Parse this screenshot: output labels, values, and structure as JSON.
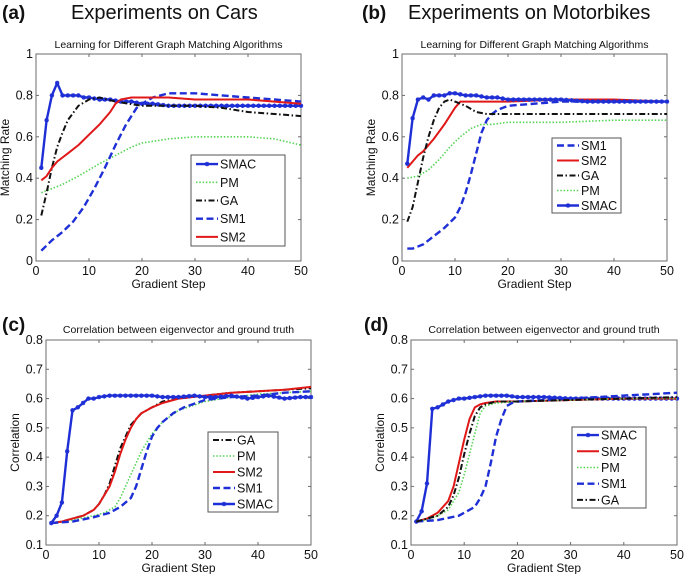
{
  "figure": {
    "panels": [
      {
        "label": "(a)",
        "heading": "Experiments on Cars"
      },
      {
        "label": "(b)",
        "heading": "Experiments on Motorbikes"
      },
      {
        "label": "(c)",
        "heading": ""
      },
      {
        "label": "(d)",
        "heading": ""
      }
    ]
  },
  "styles": {
    "SMAC": {
      "color": "#1f2fd6",
      "dash": "solid",
      "marker": "star"
    },
    "PM": {
      "color": "#55d455",
      "dash": "dotted",
      "marker": "none"
    },
    "GA": {
      "color": "#111111",
      "dash": "dashdot",
      "marker": "none"
    },
    "SM1": {
      "color": "#1f2fd6",
      "dash": "dashed",
      "marker": "none"
    },
    "SM2": {
      "color": "#e01818",
      "dash": "solid",
      "marker": "none"
    }
  },
  "chart_data": [
    {
      "id": "a",
      "type": "line",
      "title": "Learning for Different Graph Matching Algorithms",
      "xlabel": "Gradient Step",
      "ylabel": "Matching Rate",
      "xlim": [
        0,
        50
      ],
      "ylim": [
        0,
        1
      ],
      "xticks": [
        0,
        10,
        20,
        30,
        40,
        50
      ],
      "yticks": [
        0,
        0.2,
        0.4,
        0.6,
        0.8,
        1
      ],
      "ytick_labels": [
        "0",
        "0.2",
        "0.4",
        "0.6",
        "0.8",
        "1"
      ],
      "legend": [
        "SMAC",
        "PM",
        "GA",
        "SM1",
        "SM2"
      ],
      "legend_position": "center-right",
      "series": [
        {
          "name": "SMAC",
          "x": [
            1,
            2,
            3,
            4,
            5,
            6,
            7,
            8,
            9,
            10,
            12,
            14,
            16,
            18,
            20,
            22,
            25,
            30,
            35,
            40,
            45,
            50
          ],
          "y": [
            0.45,
            0.68,
            0.8,
            0.86,
            0.8,
            0.8,
            0.8,
            0.8,
            0.79,
            0.79,
            0.78,
            0.78,
            0.77,
            0.77,
            0.76,
            0.76,
            0.75,
            0.75,
            0.75,
            0.75,
            0.75,
            0.75
          ]
        },
        {
          "name": "PM",
          "x": [
            1,
            3,
            5,
            8,
            10,
            12,
            15,
            18,
            20,
            25,
            30,
            35,
            40,
            45,
            50
          ],
          "y": [
            0.33,
            0.35,
            0.37,
            0.41,
            0.44,
            0.47,
            0.51,
            0.55,
            0.57,
            0.59,
            0.6,
            0.6,
            0.6,
            0.59,
            0.56
          ]
        },
        {
          "name": "GA",
          "x": [
            1,
            2,
            3,
            4,
            5,
            6,
            8,
            10,
            12,
            15,
            20,
            25,
            30,
            35,
            40,
            45,
            50
          ],
          "y": [
            0.22,
            0.33,
            0.45,
            0.55,
            0.62,
            0.68,
            0.75,
            0.78,
            0.79,
            0.77,
            0.75,
            0.75,
            0.75,
            0.74,
            0.72,
            0.71,
            0.7
          ]
        },
        {
          "name": "SM1",
          "x": [
            1,
            3,
            5,
            7,
            9,
            11,
            13,
            15,
            17,
            19,
            20,
            22,
            25,
            30,
            35,
            40,
            45,
            50
          ],
          "y": [
            0.05,
            0.1,
            0.14,
            0.19,
            0.26,
            0.35,
            0.45,
            0.56,
            0.66,
            0.74,
            0.76,
            0.79,
            0.81,
            0.81,
            0.8,
            0.79,
            0.78,
            0.77
          ]
        },
        {
          "name": "SM2",
          "x": [
            1,
            2,
            3,
            4,
            5,
            6,
            8,
            10,
            12,
            14,
            15,
            16,
            18,
            20,
            25,
            30,
            35,
            40,
            45,
            50
          ],
          "y": [
            0.39,
            0.41,
            0.45,
            0.48,
            0.5,
            0.52,
            0.56,
            0.61,
            0.66,
            0.72,
            0.76,
            0.78,
            0.79,
            0.79,
            0.79,
            0.78,
            0.78,
            0.78,
            0.77,
            0.76
          ]
        }
      ]
    },
    {
      "id": "b",
      "type": "line",
      "title": "Learning for Different Graph Matching Algorithms",
      "xlabel": "Gradient Step",
      "ylabel": "Matching Rate",
      "xlim": [
        0,
        50
      ],
      "ylim": [
        0,
        1
      ],
      "xticks": [
        0,
        10,
        20,
        30,
        40,
        50
      ],
      "yticks": [
        0,
        0.2,
        0.4,
        0.6,
        0.8,
        1
      ],
      "ytick_labels": [
        "0",
        "0.2",
        "0.4",
        "0.6",
        "0.8",
        "1"
      ],
      "legend": [
        "SM1",
        "SM2",
        "GA",
        "PM",
        "SMAC"
      ],
      "legend_position": "center-right",
      "series": [
        {
          "name": "SM1",
          "x": [
            1,
            2,
            4,
            6,
            8,
            10,
            11,
            12,
            13,
            14,
            15,
            16,
            17,
            18,
            20,
            25,
            30,
            40,
            50
          ],
          "y": [
            0.06,
            0.06,
            0.08,
            0.12,
            0.16,
            0.21,
            0.26,
            0.33,
            0.42,
            0.52,
            0.62,
            0.68,
            0.71,
            0.73,
            0.75,
            0.76,
            0.77,
            0.77,
            0.77
          ]
        },
        {
          "name": "SM2",
          "x": [
            1,
            2,
            3,
            4,
            5,
            6,
            8,
            10,
            11,
            12,
            15,
            20,
            30,
            40,
            50
          ],
          "y": [
            0.45,
            0.48,
            0.51,
            0.53,
            0.56,
            0.59,
            0.66,
            0.74,
            0.77,
            0.77,
            0.77,
            0.77,
            0.78,
            0.78,
            0.77
          ]
        },
        {
          "name": "GA",
          "x": [
            1,
            2,
            3,
            4,
            5,
            6,
            7,
            8,
            9,
            10,
            12,
            14,
            16,
            18,
            20,
            30,
            40,
            50
          ],
          "y": [
            0.19,
            0.26,
            0.38,
            0.5,
            0.6,
            0.68,
            0.74,
            0.77,
            0.78,
            0.77,
            0.75,
            0.72,
            0.71,
            0.71,
            0.71,
            0.71,
            0.71,
            0.71
          ]
        },
        {
          "name": "PM",
          "x": [
            1,
            3,
            5,
            7,
            9,
            11,
            13,
            15,
            17,
            20,
            30,
            40,
            50
          ],
          "y": [
            0.4,
            0.41,
            0.44,
            0.49,
            0.55,
            0.6,
            0.64,
            0.66,
            0.66,
            0.67,
            0.67,
            0.68,
            0.68
          ]
        },
        {
          "name": "SMAC",
          "x": [
            1,
            2,
            3,
            4,
            5,
            6,
            7,
            8,
            9,
            10,
            12,
            14,
            16,
            18,
            20,
            25,
            30,
            35,
            40,
            45,
            50
          ],
          "y": [
            0.47,
            0.69,
            0.78,
            0.79,
            0.78,
            0.8,
            0.8,
            0.8,
            0.81,
            0.81,
            0.8,
            0.8,
            0.79,
            0.79,
            0.78,
            0.78,
            0.78,
            0.77,
            0.77,
            0.77,
            0.77
          ]
        }
      ]
    },
    {
      "id": "c",
      "type": "line",
      "title": "Correlation between eigenvector and ground truth",
      "xlabel": "Gradient Step",
      "ylabel": "Correlation",
      "xlim": [
        0,
        50
      ],
      "ylim": [
        0.1,
        0.8
      ],
      "xticks": [
        0,
        10,
        20,
        30,
        40,
        50
      ],
      "yticks": [
        0.1,
        0.2,
        0.3,
        0.4,
        0.5,
        0.6,
        0.7,
        0.8
      ],
      "ytick_labels": [
        "0.1",
        "0.2",
        "0.3",
        "0.4",
        "0.5",
        "0.6",
        "0.7",
        "0.8"
      ],
      "legend": [
        "GA",
        "PM",
        "SM2",
        "SM1",
        "SMAC"
      ],
      "legend_position": "lower-right",
      "series": [
        {
          "name": "GA",
          "x": [
            1,
            3,
            5,
            7,
            9,
            10,
            11,
            12,
            13,
            14,
            15,
            16,
            17,
            18,
            20,
            22,
            25,
            30,
            35,
            40,
            45,
            50
          ],
          "y": [
            0.175,
            0.18,
            0.19,
            0.2,
            0.22,
            0.24,
            0.27,
            0.31,
            0.37,
            0.43,
            0.47,
            0.51,
            0.53,
            0.55,
            0.57,
            0.59,
            0.6,
            0.61,
            0.62,
            0.625,
            0.63,
            0.635
          ]
        },
        {
          "name": "PM",
          "x": [
            1,
            5,
            9,
            11,
            13,
            14,
            15,
            16,
            17,
            18,
            19,
            20,
            22,
            25,
            30,
            35,
            40,
            45,
            50
          ],
          "y": [
            0.175,
            0.185,
            0.2,
            0.21,
            0.23,
            0.26,
            0.3,
            0.34,
            0.38,
            0.42,
            0.45,
            0.48,
            0.52,
            0.56,
            0.59,
            0.605,
            0.615,
            0.62,
            0.625
          ]
        },
        {
          "name": "SM2",
          "x": [
            1,
            3,
            5,
            7,
            9,
            10,
            11,
            12,
            13,
            14,
            15,
            16,
            17,
            18,
            20,
            22,
            25,
            30,
            35,
            40,
            45,
            50
          ],
          "y": [
            0.175,
            0.18,
            0.19,
            0.2,
            0.22,
            0.24,
            0.27,
            0.3,
            0.35,
            0.41,
            0.46,
            0.5,
            0.53,
            0.55,
            0.57,
            0.585,
            0.6,
            0.61,
            0.62,
            0.625,
            0.63,
            0.64
          ]
        },
        {
          "name": "SM1",
          "x": [
            1,
            5,
            9,
            12,
            14,
            16,
            17,
            18,
            19,
            20,
            21,
            22,
            24,
            26,
            30,
            35,
            40,
            45,
            50
          ],
          "y": [
            0.175,
            0.18,
            0.195,
            0.21,
            0.23,
            0.26,
            0.3,
            0.36,
            0.42,
            0.47,
            0.5,
            0.52,
            0.55,
            0.57,
            0.595,
            0.605,
            0.61,
            0.62,
            0.625
          ]
        },
        {
          "name": "SMAC",
          "x": [
            1,
            2,
            3,
            4,
            5,
            6,
            7,
            8,
            9,
            10,
            12,
            14,
            16,
            18,
            20,
            22,
            25,
            28,
            30,
            32,
            35,
            38,
            40,
            42,
            45,
            48,
            50
          ],
          "y": [
            0.175,
            0.2,
            0.245,
            0.42,
            0.56,
            0.57,
            0.585,
            0.6,
            0.6,
            0.605,
            0.61,
            0.61,
            0.61,
            0.61,
            0.61,
            0.605,
            0.605,
            0.61,
            0.605,
            0.605,
            0.61,
            0.6,
            0.605,
            0.61,
            0.6,
            0.605,
            0.605
          ]
        }
      ]
    },
    {
      "id": "d",
      "type": "line",
      "title": "Correlation between eigenvector and ground truth",
      "xlabel": "Gradient Step",
      "ylabel": "Correlation",
      "xlim": [
        0,
        50
      ],
      "ylim": [
        0.1,
        0.8
      ],
      "xticks": [
        0,
        10,
        20,
        30,
        40,
        50
      ],
      "yticks": [
        0.1,
        0.2,
        0.3,
        0.4,
        0.5,
        0.6,
        0.7,
        0.8
      ],
      "ytick_labels": [
        "0.1",
        "0.2",
        "0.3",
        "0.4",
        "0.5",
        "0.6",
        "0.7",
        "0.8"
      ],
      "legend": [
        "SMAC",
        "SM2",
        "PM",
        "SM1",
        "GA"
      ],
      "legend_position": "lower-right",
      "series": [
        {
          "name": "SMAC",
          "x": [
            1,
            2,
            3,
            4,
            5,
            6,
            7,
            8,
            9,
            10,
            12,
            14,
            16,
            18,
            20,
            25,
            30,
            35,
            40,
            45,
            50
          ],
          "y": [
            0.18,
            0.215,
            0.31,
            0.565,
            0.57,
            0.58,
            0.59,
            0.595,
            0.6,
            0.6,
            0.605,
            0.61,
            0.61,
            0.61,
            0.605,
            0.605,
            0.6,
            0.6,
            0.6,
            0.6,
            0.6
          ]
        },
        {
          "name": "SM2",
          "x": [
            1,
            3,
            5,
            7,
            8,
            9,
            10,
            11,
            12,
            13,
            14,
            16,
            20,
            30,
            40,
            50
          ],
          "y": [
            0.18,
            0.19,
            0.21,
            0.25,
            0.3,
            0.38,
            0.46,
            0.53,
            0.57,
            0.58,
            0.585,
            0.59,
            0.59,
            0.595,
            0.6,
            0.6
          ]
        },
        {
          "name": "PM",
          "x": [
            1,
            3,
            5,
            7,
            9,
            10,
            11,
            12,
            13,
            14,
            16,
            20,
            30,
            40,
            50
          ],
          "y": [
            0.18,
            0.185,
            0.2,
            0.22,
            0.28,
            0.34,
            0.41,
            0.48,
            0.55,
            0.575,
            0.585,
            0.59,
            0.595,
            0.6,
            0.6
          ]
        },
        {
          "name": "SM1",
          "x": [
            1,
            5,
            9,
            12,
            13,
            14,
            15,
            16,
            17,
            18,
            19,
            20,
            30,
            40,
            45,
            50
          ],
          "y": [
            0.18,
            0.185,
            0.2,
            0.23,
            0.26,
            0.3,
            0.38,
            0.47,
            0.53,
            0.575,
            0.585,
            0.59,
            0.6,
            0.61,
            0.615,
            0.62
          ]
        },
        {
          "name": "GA",
          "x": [
            1,
            3,
            5,
            7,
            8,
            9,
            10,
            11,
            12,
            13,
            14,
            16,
            20,
            30,
            40,
            50
          ],
          "y": [
            0.18,
            0.19,
            0.2,
            0.23,
            0.27,
            0.33,
            0.41,
            0.48,
            0.54,
            0.57,
            0.58,
            0.59,
            0.59,
            0.595,
            0.6,
            0.605
          ]
        }
      ]
    }
  ]
}
